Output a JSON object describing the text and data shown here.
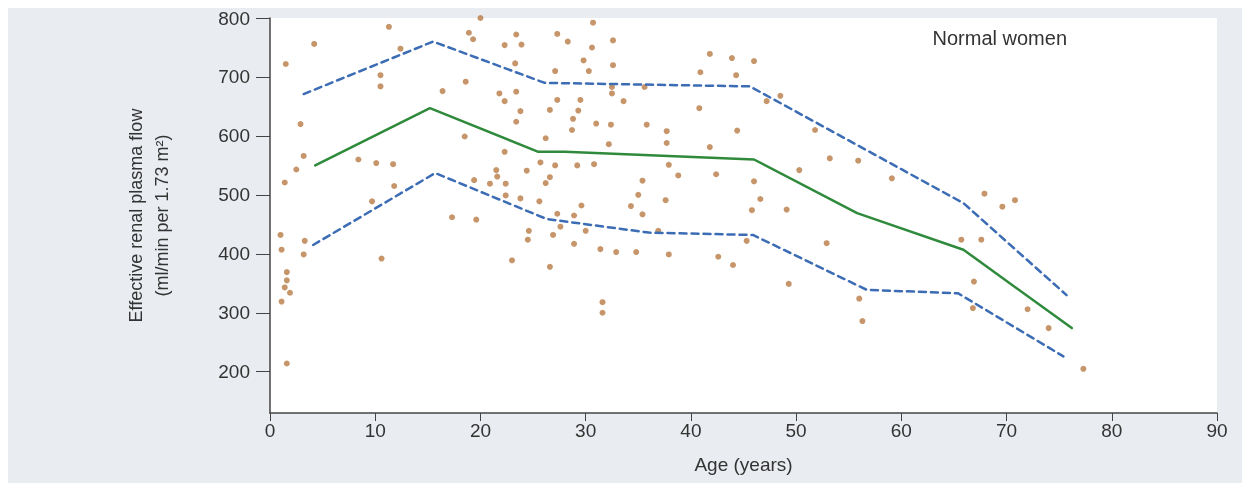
{
  "chart_data": {
    "type": "scatter",
    "xlabel": "Age (years)",
    "ylabel": "Effective renal plasma flow\n(ml/min per 1.73 m²)",
    "xlim": [
      0,
      90
    ],
    "xticks": [
      0,
      10,
      20,
      30,
      40,
      50,
      60,
      70,
      80,
      90
    ],
    "ylim": [
      130,
      800
    ],
    "yticks": [
      200,
      300,
      400,
      500,
      600,
      700,
      800
    ],
    "grid": false,
    "annotations": [
      "Normal women"
    ],
    "series": [
      {
        "marker": "circle",
        "color": "#b87a45",
        "x": [
          11.3,
          4.2,
          1.5,
          10.5,
          10.5,
          12.4,
          2.9,
          3.2,
          2.5,
          1.4,
          8.4,
          10.1,
          11.7,
          11.8,
          9.7,
          1.0,
          1.1,
          3.3,
          3.2,
          10.6,
          1.6,
          1.6,
          1.4,
          1.9,
          1.1,
          1.6,
          20.0,
          18.9,
          19.3,
          23.4,
          27.3,
          28.3,
          30.7,
          32.6,
          22.3,
          23.9,
          30.6,
          29.8,
          23.3,
          27.1,
          30.3,
          32.6,
          18.6,
          16.4,
          21.8,
          23.4,
          22.3,
          27.3,
          29.5,
          23.8,
          26.6,
          29.3,
          28.8,
          23.4,
          31.0,
          32.4,
          28.7,
          18.5,
          26.2,
          32.2,
          22.3,
          25.7,
          27.1,
          29.2,
          30.8,
          24.4,
          21.5,
          19.4,
          21.6,
          20.9,
          22.4,
          26.6,
          26.2,
          22.4,
          23.8,
          25.6,
          29.6,
          27.3,
          28.9,
          17.3,
          19.6,
          27.6,
          24.6,
          30.0,
          24.5,
          26.9,
          28.9,
          31.4,
          32.9,
          23.0,
          26.6,
          31.6,
          31.6,
          32.5,
          32.5,
          33.6,
          35.6,
          41.8,
          43.9,
          46.0,
          40.9,
          44.3,
          40.8,
          48.5,
          47.2,
          35.8,
          37.7,
          44.4,
          51.8,
          37.7,
          41.8,
          37.9,
          38.8,
          42.4,
          35.4,
          46.0,
          53.2,
          50.3,
          35.0,
          37.6,
          34.3,
          35.4,
          46.6,
          45.8,
          49.1,
          36.9,
          45.3,
          52.9,
          34.8,
          37.9,
          42.6,
          44.0,
          49.3,
          55.9,
          59.1,
          67.9,
          69.6,
          70.8,
          65.7,
          67.6,
          66.9,
          56.0,
          56.3,
          66.8,
          72.0,
          74.0,
          77.3
        ],
        "values": [
          785,
          756,
          722,
          703,
          684,
          748,
          620,
          566,
          543,
          521,
          560,
          554,
          552,
          515,
          489,
          432,
          407,
          422,
          399,
          392,
          369,
          355,
          343,
          334,
          319,
          214,
          800,
          775,
          764,
          772,
          773,
          760,
          792,
          762,
          754,
          755,
          750,
          728,
          723,
          710,
          710,
          720,
          692,
          676,
          672,
          675,
          659,
          661,
          661,
          642,
          644,
          643,
          629,
          624,
          621,
          619,
          610,
          599,
          596,
          586,
          573,
          555,
          550,
          550,
          552,
          541,
          542,
          525,
          531,
          519,
          519,
          530,
          520,
          499,
          494,
          489,
          482,
          468,
          465,
          462,
          458,
          446,
          439,
          439,
          424,
          432,
          417,
          408,
          403,
          389,
          378,
          318,
          300,
          683,
          672,
          659,
          683,
          739,
          732,
          727,
          708,
          703,
          647,
          668,
          659,
          619,
          608,
          609,
          610,
          588,
          581,
          551,
          533,
          535,
          524,
          523,
          562,
          542,
          500,
          491,
          481,
          467,
          493,
          474,
          475,
          439,
          422,
          418,
          403,
          399,
          395,
          381,
          349,
          558,
          528,
          502,
          480,
          491,
          424,
          424,
          353,
          324,
          286,
          308,
          306,
          274,
          205
        ]
      },
      {
        "type": "line",
        "marker": "none",
        "line_style": "solid",
        "color": "#2f8a3c",
        "x": [
          4.3,
          15.2,
          25.5,
          28,
          46,
          55.8,
          65.9,
          76.2
        ],
        "values": [
          550,
          647,
          573,
          573,
          560,
          469,
          407,
          274
        ]
      },
      {
        "type": "line",
        "marker": "none",
        "line_style": "dashed",
        "color": "#3b6cb4",
        "x": [
          3.2,
          15.5,
          26.1,
          45.6,
          65.9,
          75.7
        ],
        "values": [
          671,
          760,
          690,
          684,
          486,
          330
        ]
      },
      {
        "type": "line",
        "marker": "none",
        "line_style": "dashed",
        "color": "#3b6cb4",
        "x": [
          4.1,
          15.7,
          26.3,
          36,
          45.9,
          56.7,
          65.4,
          75.4
        ],
        "values": [
          415,
          537,
          459,
          436,
          432,
          339,
          333,
          226
        ]
      }
    ]
  }
}
